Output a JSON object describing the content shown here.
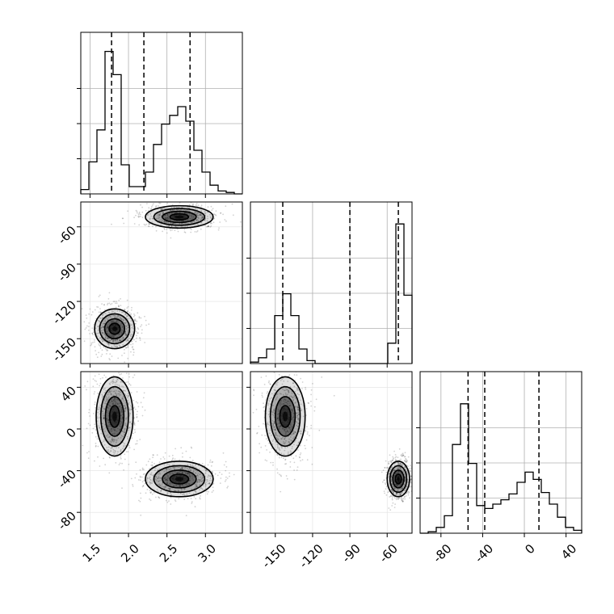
{
  "chart_data": [
    {
      "type": "histogram",
      "panel": "marginal-x",
      "x_ticks": [
        "1.5",
        "2.0",
        "2.5",
        "3.0"
      ],
      "xlim": [
        1.38,
        3.48
      ],
      "bin_edges": [
        1.38,
        1.485,
        1.59,
        1.695,
        1.8,
        1.905,
        2.01,
        2.115,
        2.22,
        2.325,
        2.43,
        2.535,
        2.64,
        2.745,
        2.85,
        2.955,
        3.06,
        3.165,
        3.27,
        3.375,
        3.48
      ],
      "counts": [
        0.03,
        0.22,
        0.44,
        0.98,
        0.82,
        0.2,
        0.05,
        0.05,
        0.15,
        0.34,
        0.48,
        0.54,
        0.6,
        0.5,
        0.3,
        0.15,
        0.06,
        0.02,
        0.01,
        0.0
      ],
      "quantile_lines": [
        1.78,
        2.2,
        2.8
      ],
      "ylim": [
        0,
        1.0
      ]
    },
    {
      "type": "histogram",
      "panel": "marginal-y",
      "x_ticks": [
        "-150",
        "-120",
        "-90",
        "-60"
      ],
      "xlim": [
        -170,
        -40
      ],
      "bin_edges": [
        -170,
        -163.5,
        -157,
        -150.5,
        -144,
        -137.5,
        -131,
        -124.5,
        -118,
        -111.5,
        -105,
        -98.5,
        -92,
        -85.5,
        -79,
        -72.5,
        -66,
        -59.5,
        -53,
        -46.5,
        -40
      ],
      "counts": [
        0.01,
        0.04,
        0.1,
        0.33,
        0.48,
        0.33,
        0.1,
        0.02,
        0.0,
        0.0,
        0.0,
        0.0,
        0.0,
        0.0,
        0.0,
        0.0,
        0.0,
        0.14,
        0.96,
        0.47
      ],
      "quantile_lines": [
        -144,
        -90,
        -51
      ],
      "ylim": [
        0,
        1.0
      ]
    },
    {
      "type": "histogram",
      "panel": "marginal-z",
      "x_ticks": [
        "-80",
        "-40",
        "0",
        "40"
      ],
      "xlim": [
        -100,
        55
      ],
      "bin_edges": [
        -100,
        -92.25,
        -84.5,
        -76.75,
        -69,
        -61.25,
        -53.5,
        -45.75,
        -38,
        -30.25,
        -22.5,
        -14.75,
        -7,
        0.75,
        8.5,
        16.25,
        24,
        31.75,
        39.5,
        47.25,
        55
      ],
      "counts": [
        0.0,
        0.01,
        0.04,
        0.12,
        0.61,
        0.89,
        0.48,
        0.19,
        0.17,
        0.2,
        0.23,
        0.27,
        0.35,
        0.42,
        0.37,
        0.28,
        0.2,
        0.11,
        0.04,
        0.02
      ],
      "quantile_lines": [
        -54,
        -38,
        14
      ],
      "ylim": [
        0,
        1.0
      ]
    },
    {
      "type": "scatter",
      "panel": "joint-x-y",
      "x_ticks": [
        "1.5",
        "2.0",
        "2.5",
        "3.0"
      ],
      "y_ticks": [
        "-60",
        "-90",
        "-120",
        "-150"
      ],
      "xlim": [
        1.38,
        3.48
      ],
      "ylim": [
        -170,
        -40
      ],
      "clusters": [
        {
          "center": [
            2.66,
            -52
          ],
          "spread": [
            0.22,
            4.5
          ]
        },
        {
          "center": [
            1.82,
            -142
          ],
          "spread": [
            0.13,
            8.0
          ]
        }
      ]
    },
    {
      "type": "scatter",
      "panel": "joint-x-z",
      "x_ticks": [
        "1.5",
        "2.0",
        "2.5",
        "3.0"
      ],
      "y_ticks": [
        "40",
        "0",
        "-40",
        "-80"
      ],
      "xlim": [
        1.38,
        3.48
      ],
      "ylim": [
        -100,
        55
      ],
      "clusters": [
        {
          "center": [
            1.82,
            12
          ],
          "spread": [
            0.12,
            19
          ]
        },
        {
          "center": [
            2.66,
            -48
          ],
          "spread": [
            0.22,
            8.5
          ]
        }
      ]
    },
    {
      "type": "scatter",
      "panel": "joint-y-z",
      "x_ticks": [
        "-150",
        "-120",
        "-90",
        "-60"
      ],
      "y_ticks": [
        "40",
        "0",
        "-40",
        "-80"
      ],
      "xlim": [
        -170,
        -40
      ],
      "ylim": [
        -100,
        55
      ],
      "clusters": [
        {
          "center": [
            -142,
            12
          ],
          "spread": [
            8,
            19
          ]
        },
        {
          "center": [
            -51,
            -48
          ],
          "spread": [
            4.5,
            8.5
          ]
        }
      ]
    }
  ]
}
